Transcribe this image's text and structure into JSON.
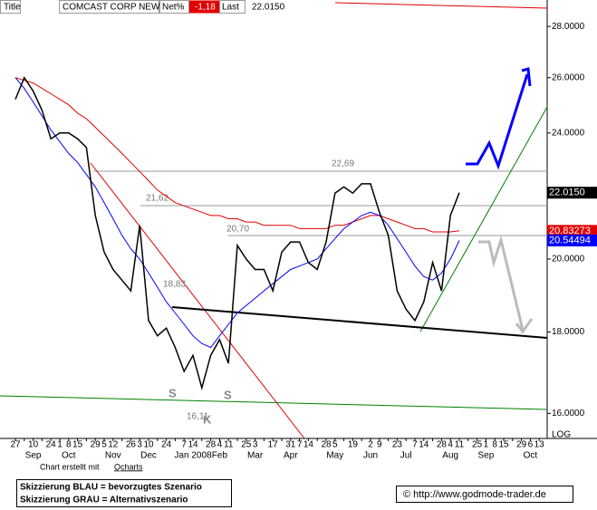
{
  "header": {
    "title_tag": "Title",
    "symbol": "COMCAST CORP NEW",
    "net_label": "Net%",
    "net_value": "-1,18",
    "last_label": "Last",
    "last_value": "22.0150"
  },
  "chart_data": {
    "type": "line",
    "log_scale": true,
    "categories": [
      "27",
      null,
      "10",
      null,
      "24",
      "1",
      "8",
      "15",
      null,
      "29",
      "5",
      "12",
      null,
      "26",
      "3",
      "10",
      null,
      "24",
      null,
      "7",
      "14",
      null,
      "28",
      "4",
      "11",
      null,
      "25",
      "3",
      null,
      "17",
      null,
      "31",
      "7",
      "14",
      null,
      "28",
      "5",
      null,
      "19",
      null,
      "2",
      "9",
      null,
      "23",
      null,
      "7",
      "14",
      null,
      "28",
      "4",
      "11",
      null,
      "25",
      "1",
      "8",
      "15",
      null,
      "29",
      "6",
      "13"
    ],
    "month_labels": [
      null,
      null,
      "Sep",
      null,
      null,
      null,
      "Oct",
      null,
      null,
      null,
      null,
      "Nov",
      null,
      null,
      null,
      "Dec",
      null,
      null,
      null,
      null,
      "Jan 2008",
      null,
      null,
      "Feb",
      null,
      null,
      null,
      "Mar",
      null,
      null,
      null,
      "Apr",
      null,
      null,
      null,
      null,
      "May",
      null,
      null,
      null,
      "Jun",
      null,
      null,
      null,
      "Jul",
      null,
      null,
      null,
      null,
      "Aug",
      null,
      null,
      null,
      "Sep",
      null,
      null,
      null,
      null,
      "Oct",
      null
    ],
    "series": [
      {
        "color": "#000000",
        "values": [
          25.2,
          26.0,
          25.5,
          24.8,
          23.8,
          24.0,
          24.0,
          23.8,
          23.5,
          21.3,
          20.2,
          19.7,
          19.4,
          19.1,
          21.0,
          18.3,
          17.9,
          18.1,
          17.6,
          17.0,
          17.4,
          16.6,
          17.4,
          17.8,
          17.2,
          20.4,
          20.0,
          19.7,
          19.7,
          19.1,
          20.2,
          20.5,
          20.5,
          19.9,
          19.7,
          20.5,
          22.0,
          22.2,
          22.0,
          22.3,
          22.3,
          21.4,
          20.7,
          19.1,
          18.6,
          18.3,
          18.8,
          19.9,
          19.1,
          21.3,
          22.015,
          null,
          null,
          null,
          null,
          null,
          null,
          null,
          null,
          null
        ]
      },
      {
        "color": "#0000ff",
        "values": [
          26.0,
          25.6,
          25.1,
          24.6,
          24.1,
          23.7,
          23.3,
          23.0,
          22.6,
          22.2,
          21.7,
          21.2,
          20.7,
          20.3,
          20.0,
          19.6,
          19.2,
          18.8,
          18.5,
          18.2,
          17.9,
          17.7,
          17.6,
          17.9,
          18.2,
          18.5,
          18.7,
          18.9,
          19.1,
          19.3,
          19.5,
          19.7,
          19.8,
          19.9,
          20.0,
          20.3,
          20.6,
          20.9,
          21.1,
          21.3,
          21.4,
          21.3,
          21.0,
          20.6,
          20.2,
          19.8,
          19.5,
          19.4,
          19.6,
          20.0,
          20.54494,
          null,
          null,
          null,
          null,
          null,
          null,
          null,
          null,
          null
        ]
      },
      {
        "color": "#e00000",
        "values": [
          26.0,
          25.9,
          25.8,
          25.6,
          25.4,
          25.2,
          25.0,
          24.7,
          24.5,
          24.2,
          23.9,
          23.6,
          23.3,
          23.0,
          22.7,
          22.4,
          22.1,
          21.9,
          21.7,
          21.6,
          21.5,
          21.4,
          21.3,
          21.3,
          21.2,
          21.2,
          21.1,
          21.1,
          21.0,
          21.0,
          21.0,
          21.0,
          20.9,
          20.9,
          20.9,
          20.9,
          21.0,
          21.0,
          21.1,
          21.2,
          21.3,
          21.3,
          21.2,
          21.1,
          21.0,
          20.9,
          20.9,
          20.8,
          20.8,
          20.8,
          20.83273,
          null,
          null,
          null,
          null,
          null,
          null,
          null,
          null,
          null
        ]
      }
    ],
    "price_boxes": [
      {
        "value": 22.015,
        "label": "22.0150",
        "color": "#000000"
      },
      {
        "value": 20.83273,
        "color": "#e00000"
      },
      {
        "value": 20.54494,
        "color": "#0000ff"
      }
    ],
    "ylim": [
      15.43,
      29.09
    ],
    "yticks": [
      {
        "value": 16,
        "label": "16.0000"
      },
      {
        "value": 18,
        "label": "18.0000"
      },
      {
        "value": 20,
        "label": "20.0000"
      },
      {
        "value": 24,
        "label": "24.0000"
      },
      {
        "value": 26,
        "label": "26.0000"
      },
      {
        "value": 28,
        "label": "28.0000"
      }
    ],
    "scale_label": "LOG",
    "annotations": [
      "22,69",
      "21,62",
      "20,70",
      "18,83",
      "16,11",
      "S",
      "K",
      "S"
    ]
  },
  "footer": {
    "credit": "Chart erstellt mit",
    "credit_link": "Qcharts",
    "legend_blue": "Skizzierung BLAU = bevorzugtes Szenario",
    "legend_gray": "Skizzierung GRAU = Alternativszenario",
    "copyright": "© http://www.godmode-trader.de"
  }
}
